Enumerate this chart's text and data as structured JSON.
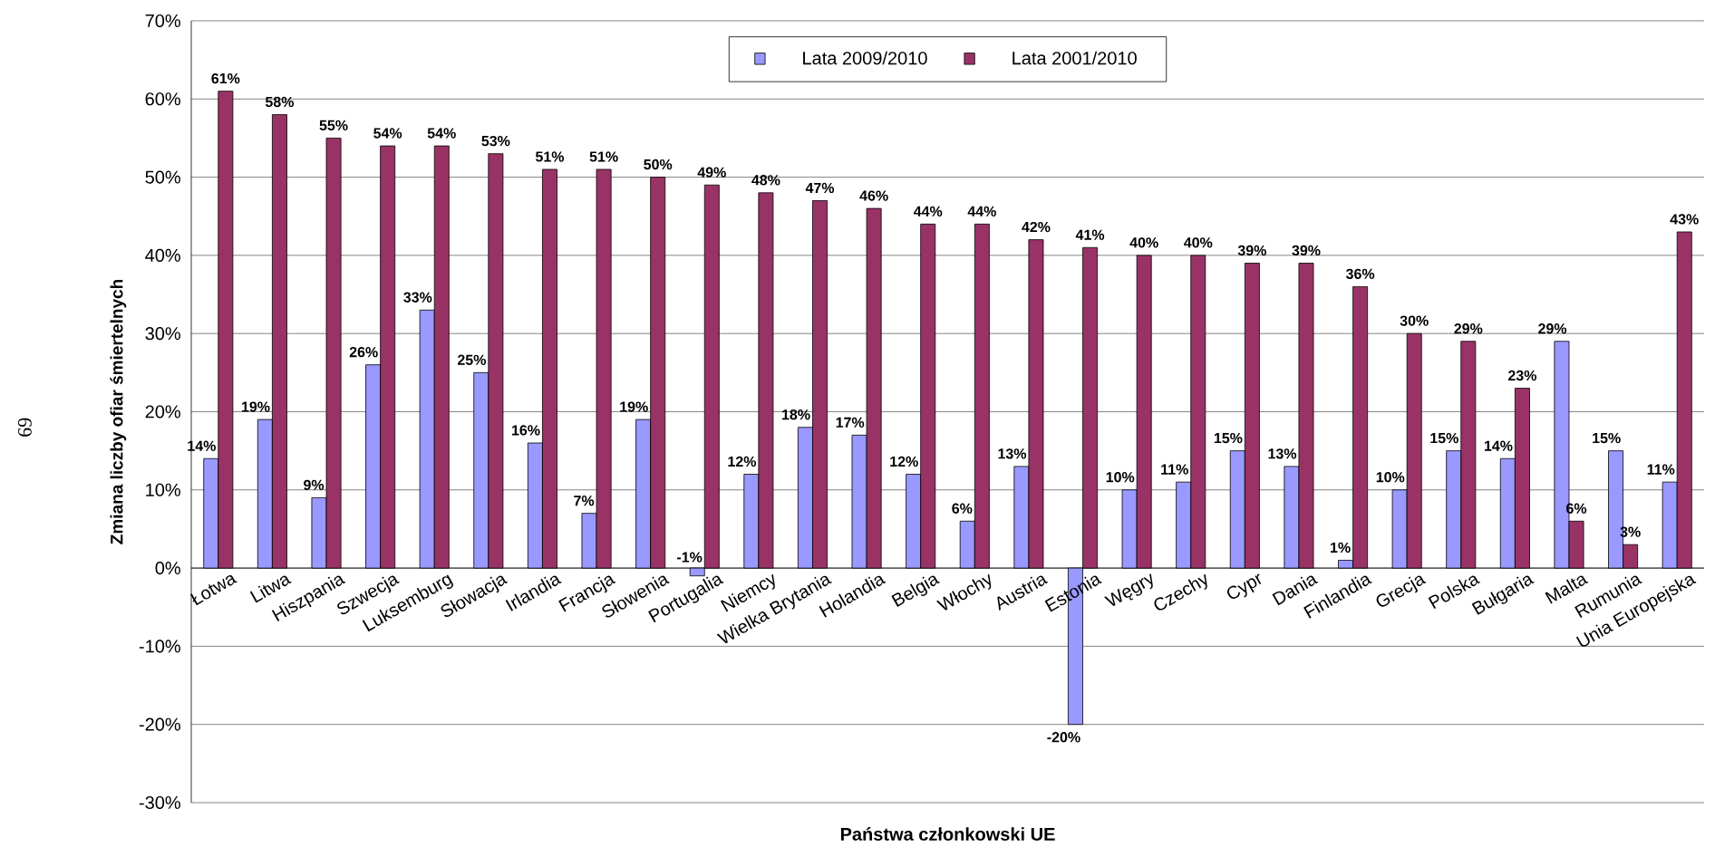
{
  "chart_data": {
    "type": "bar",
    "xlabel": "Państwa członkowski UE",
    "ylabel": "Zmiana liczby ofiar śmiertelnych",
    "annotations": [
      "69"
    ],
    "categories": [
      "Łotwa",
      "Litwa",
      "Hiszpania",
      "Szwecja",
      "Luksemburg",
      "Słowacja",
      "Irlandia",
      "Francja",
      "Słowenia",
      "Portugalia",
      "Niemcy",
      "Wielka Brytania",
      "Holandia",
      "Belgia",
      "Włochy",
      "Austria",
      "Estonia",
      "Węgry",
      "Czechy",
      "Cypr",
      "Dania",
      "Finlandia",
      "Grecja",
      "Polska",
      "Bułgaria",
      "Malta",
      "Rumunia",
      "Unia  Europejska"
    ],
    "series": [
      {
        "name": "Lata 2009/2010",
        "color": "#9999ff",
        "values": [
          14,
          19,
          9,
          26,
          33,
          25,
          16,
          7,
          19,
          -1,
          12,
          18,
          17,
          12,
          6,
          13,
          -20,
          10,
          11,
          15,
          13,
          1,
          10,
          15,
          14,
          29,
          15,
          11
        ],
        "value_labels": [
          "14%",
          "19%",
          "9%",
          "26%",
          "33%",
          "25%",
          "16%",
          "7%",
          "19%",
          "-1%",
          "12%",
          "18%",
          "17%",
          "12%",
          "6%",
          "13%",
          "-20%",
          "10%",
          "11%",
          "15%",
          "13%",
          "1%",
          "10%",
          "15%",
          "14%",
          "29%",
          "15%",
          "11%"
        ]
      },
      {
        "name": "Lata 2001/2010",
        "color": "#993366",
        "values": [
          61,
          58,
          55,
          54,
          54,
          53,
          51,
          51,
          50,
          49,
          48,
          47,
          46,
          44,
          44,
          42,
          41,
          40,
          40,
          39,
          39,
          36,
          30,
          29,
          23,
          6,
          3,
          43
        ],
        "value_labels": [
          "61%",
          "58%",
          "55%",
          "54%",
          "54%",
          "53%",
          "51%",
          "51%",
          "50%",
          "49%",
          "48%",
          "47%",
          "46%",
          "44%",
          "44%",
          "42%",
          "41%",
          "40%",
          "40%",
          "39%",
          "39%",
          "36%",
          "30%",
          "29%",
          "23%",
          "6%",
          "3%",
          "43%"
        ]
      }
    ],
    "ylim": [
      -30,
      70
    ],
    "yticks": [
      {
        "value": -30,
        "label": "-30%"
      },
      {
        "value": -20,
        "label": "-20%"
      },
      {
        "value": -10,
        "label": "-10%"
      },
      {
        "value": 0,
        "label": "0%"
      },
      {
        "value": 10,
        "label": "10%"
      },
      {
        "value": 20,
        "label": "20%"
      },
      {
        "value": 30,
        "label": "30%"
      },
      {
        "value": 40,
        "label": "40%"
      },
      {
        "value": 50,
        "label": "50%"
      },
      {
        "value": 60,
        "label": "60%"
      },
      {
        "value": 70,
        "label": "70%"
      }
    ],
    "grid": "y",
    "legend": "top"
  }
}
